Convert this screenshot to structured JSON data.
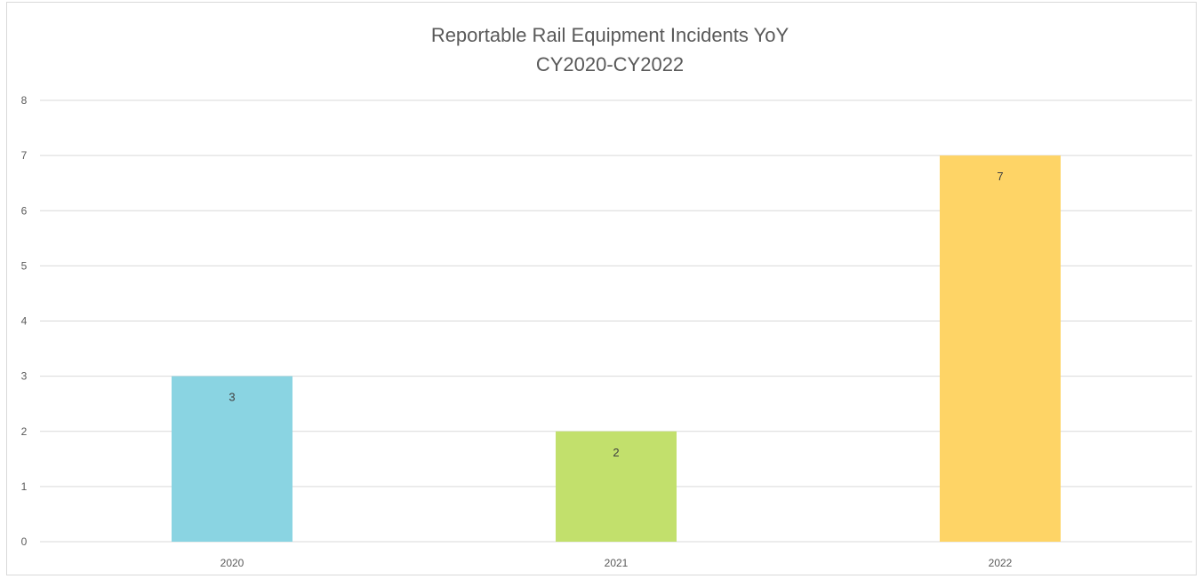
{
  "chart_data": {
    "type": "bar",
    "title": "Reportable Rail Equipment Incidents YoY",
    "subtitle": "CY2020-CY2022",
    "categories": [
      "2020",
      "2021",
      "2022"
    ],
    "values": [
      3,
      2,
      7
    ],
    "data_labels": [
      "3",
      "2",
      "7"
    ],
    "colors": [
      "#8ad4e2",
      "#c2e06c",
      "#fed466"
    ],
    "xlabel": "",
    "ylabel": "",
    "ylim": [
      0,
      8
    ],
    "yticks": [
      "0",
      "1",
      "2",
      "3",
      "4",
      "5",
      "6",
      "7",
      "8"
    ],
    "grid": true,
    "legend": "none",
    "gridline_color": "#d9d9d9"
  }
}
